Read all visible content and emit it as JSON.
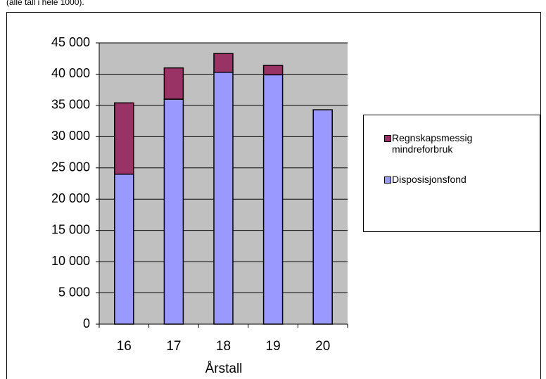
{
  "chart_data": {
    "type": "stacked_bar",
    "note": "(alle tall i hele 1000).",
    "x_label": "Årstall",
    "categories": [
      "16",
      "17",
      "18",
      "19",
      "20"
    ],
    "series": [
      {
        "name": "Disposisjonsfond",
        "color": "#9999ff",
        "values": [
          24000,
          36000,
          40300,
          39900,
          34300
        ]
      },
      {
        "name": "Regnskapsmessig mindreforbruk",
        "color": "#993366",
        "values": [
          11400,
          5000,
          3000,
          1500,
          0
        ]
      }
    ],
    "ylim": [
      0,
      45000
    ],
    "yticks": [
      0,
      {
        "value": 5000,
        "label": "5 000"
      },
      {
        "value": 10000,
        "label": "10 000"
      },
      {
        "value": 15000,
        "label": "15 000"
      },
      {
        "value": 20000,
        "label": "20 000"
      },
      {
        "value": 25000,
        "label": "25 000"
      },
      {
        "value": 30000,
        "label": "30 000"
      },
      {
        "value": 35000,
        "label": "35 000"
      },
      {
        "value": 40000,
        "label": "40 000"
      },
      {
        "value": 45000,
        "label": "45 000"
      }
    ],
    "grid": true,
    "plot_background": "#c0c0c0",
    "legend": "right"
  }
}
